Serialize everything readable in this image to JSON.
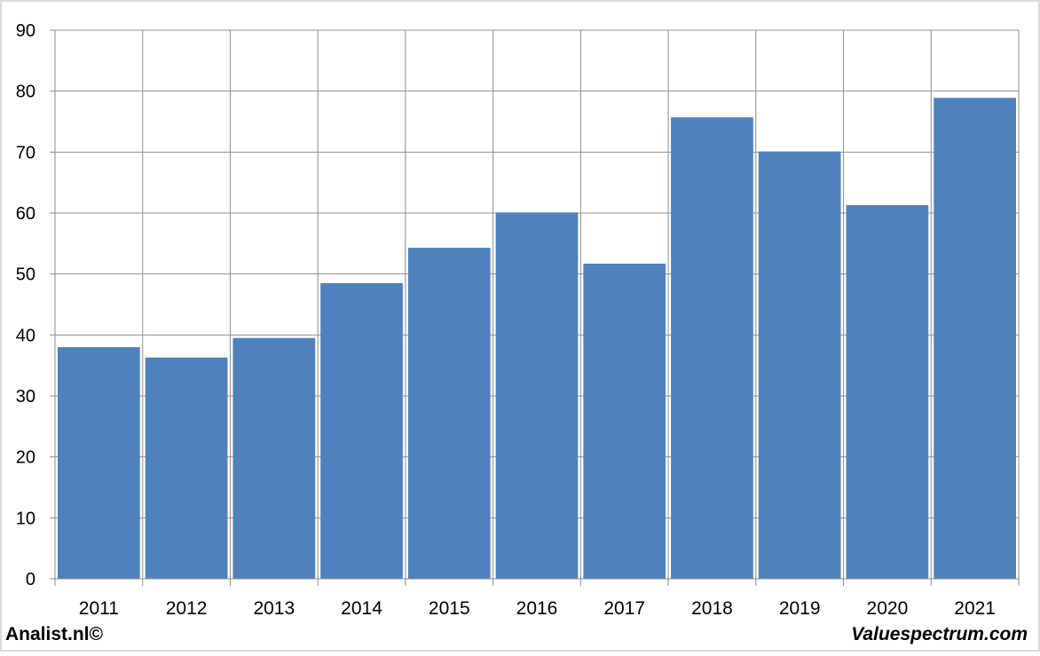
{
  "chart_data": {
    "type": "bar",
    "categories": [
      "2011",
      "2012",
      "2013",
      "2014",
      "2015",
      "2016",
      "2017",
      "2018",
      "2019",
      "2020",
      "2021"
    ],
    "values": [
      38.0,
      36.3,
      39.5,
      48.5,
      54.3,
      60.1,
      51.7,
      75.7,
      70.1,
      61.3,
      78.9
    ],
    "title": "",
    "xlabel": "",
    "ylabel": "",
    "ylim": [
      0,
      90
    ],
    "yticks": [
      0,
      10,
      20,
      30,
      40,
      50,
      60,
      70,
      80,
      90
    ],
    "grid": true,
    "bar_color": "#4f81bd",
    "grid_color": "#8c8c8c"
  },
  "footer": {
    "left": "Analist.nl©",
    "right": "Valuespectrum.com"
  }
}
